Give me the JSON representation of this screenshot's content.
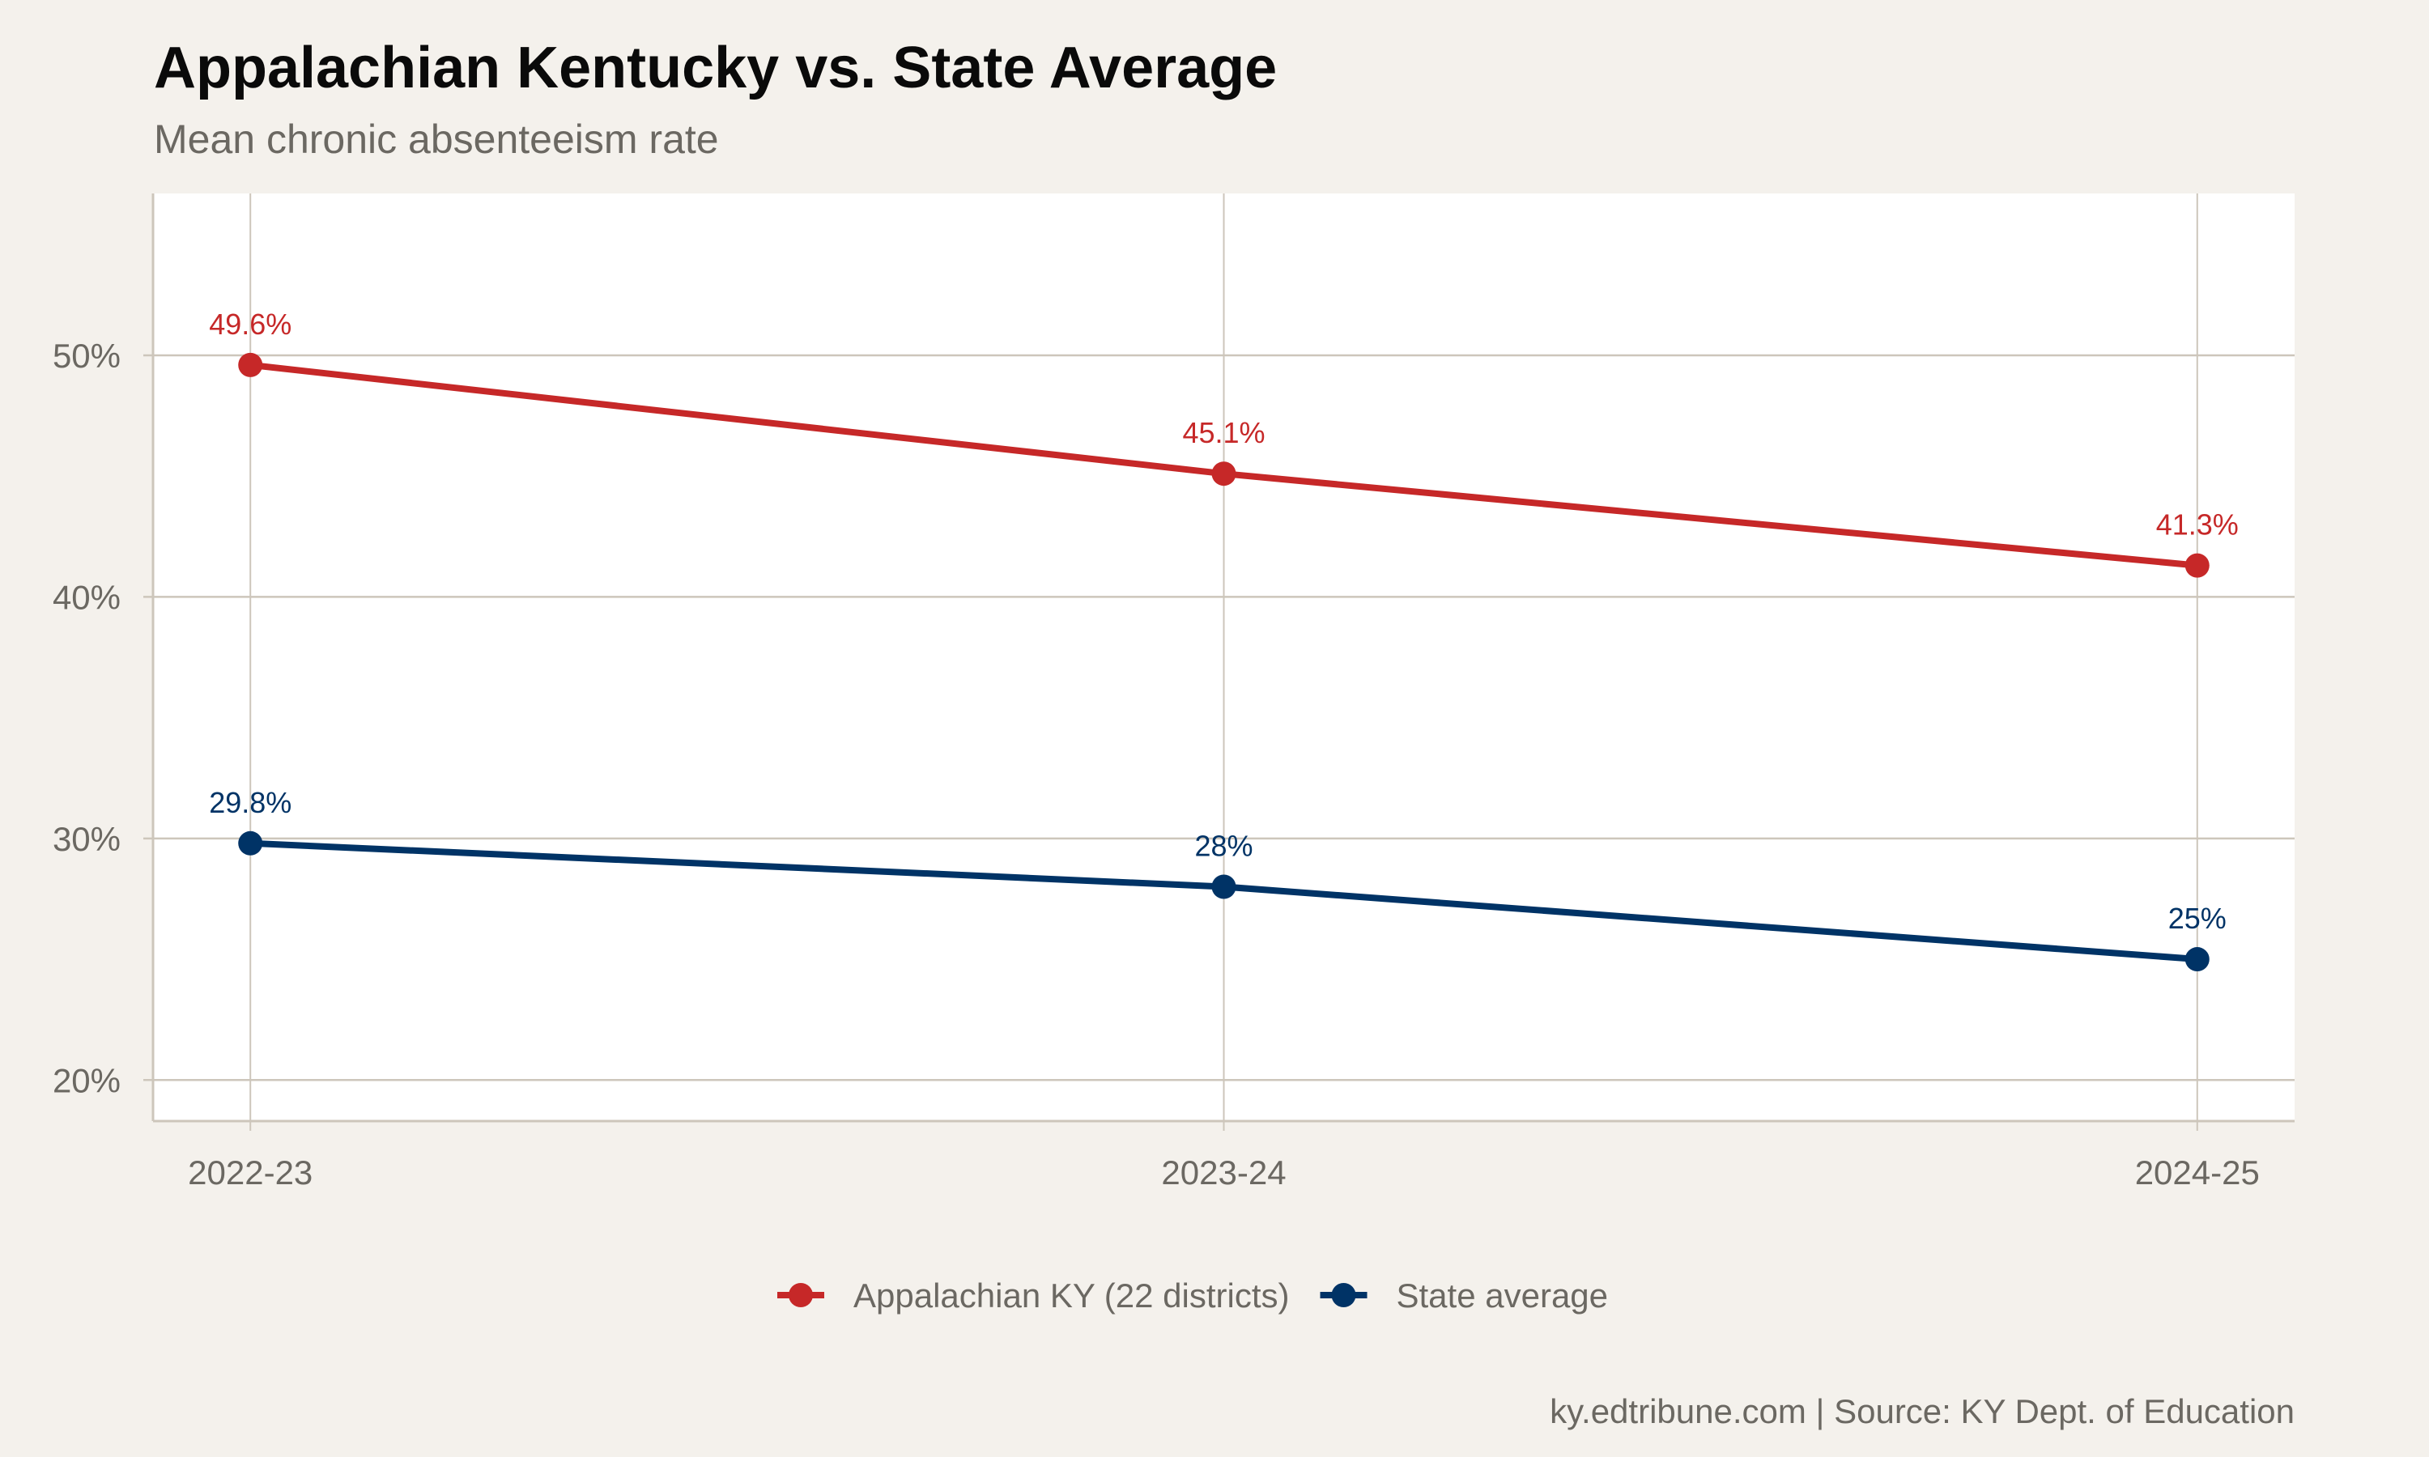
{
  "chart_data": {
    "type": "line",
    "title": "Appalachian Kentucky vs. State Average",
    "subtitle": "Mean chronic absenteeism rate",
    "caption": "ky.edtribune.com | Source: KY Dept. of Education",
    "xlabel": "",
    "ylabel": "",
    "categories": [
      "2022-23",
      "2023-24",
      "2024-25"
    ],
    "y_ticks": [
      20,
      30,
      40,
      50
    ],
    "y_tick_labels": [
      "20%",
      "30%",
      "40%",
      "50%"
    ],
    "ylim": [
      18.3,
      56.7
    ],
    "grid": true,
    "legend_position": "bottom",
    "series": [
      {
        "name": "Appalachian KY (22 districts)",
        "color": "#c62828",
        "values": [
          49.6,
          45.1,
          41.3
        ],
        "labels": [
          "49.6%",
          "45.1%",
          "41.3%"
        ]
      },
      {
        "name": "State average",
        "color": "#003366",
        "values": [
          29.8,
          28,
          25
        ],
        "labels": [
          "29.8%",
          "28%",
          "25%"
        ]
      }
    ]
  }
}
